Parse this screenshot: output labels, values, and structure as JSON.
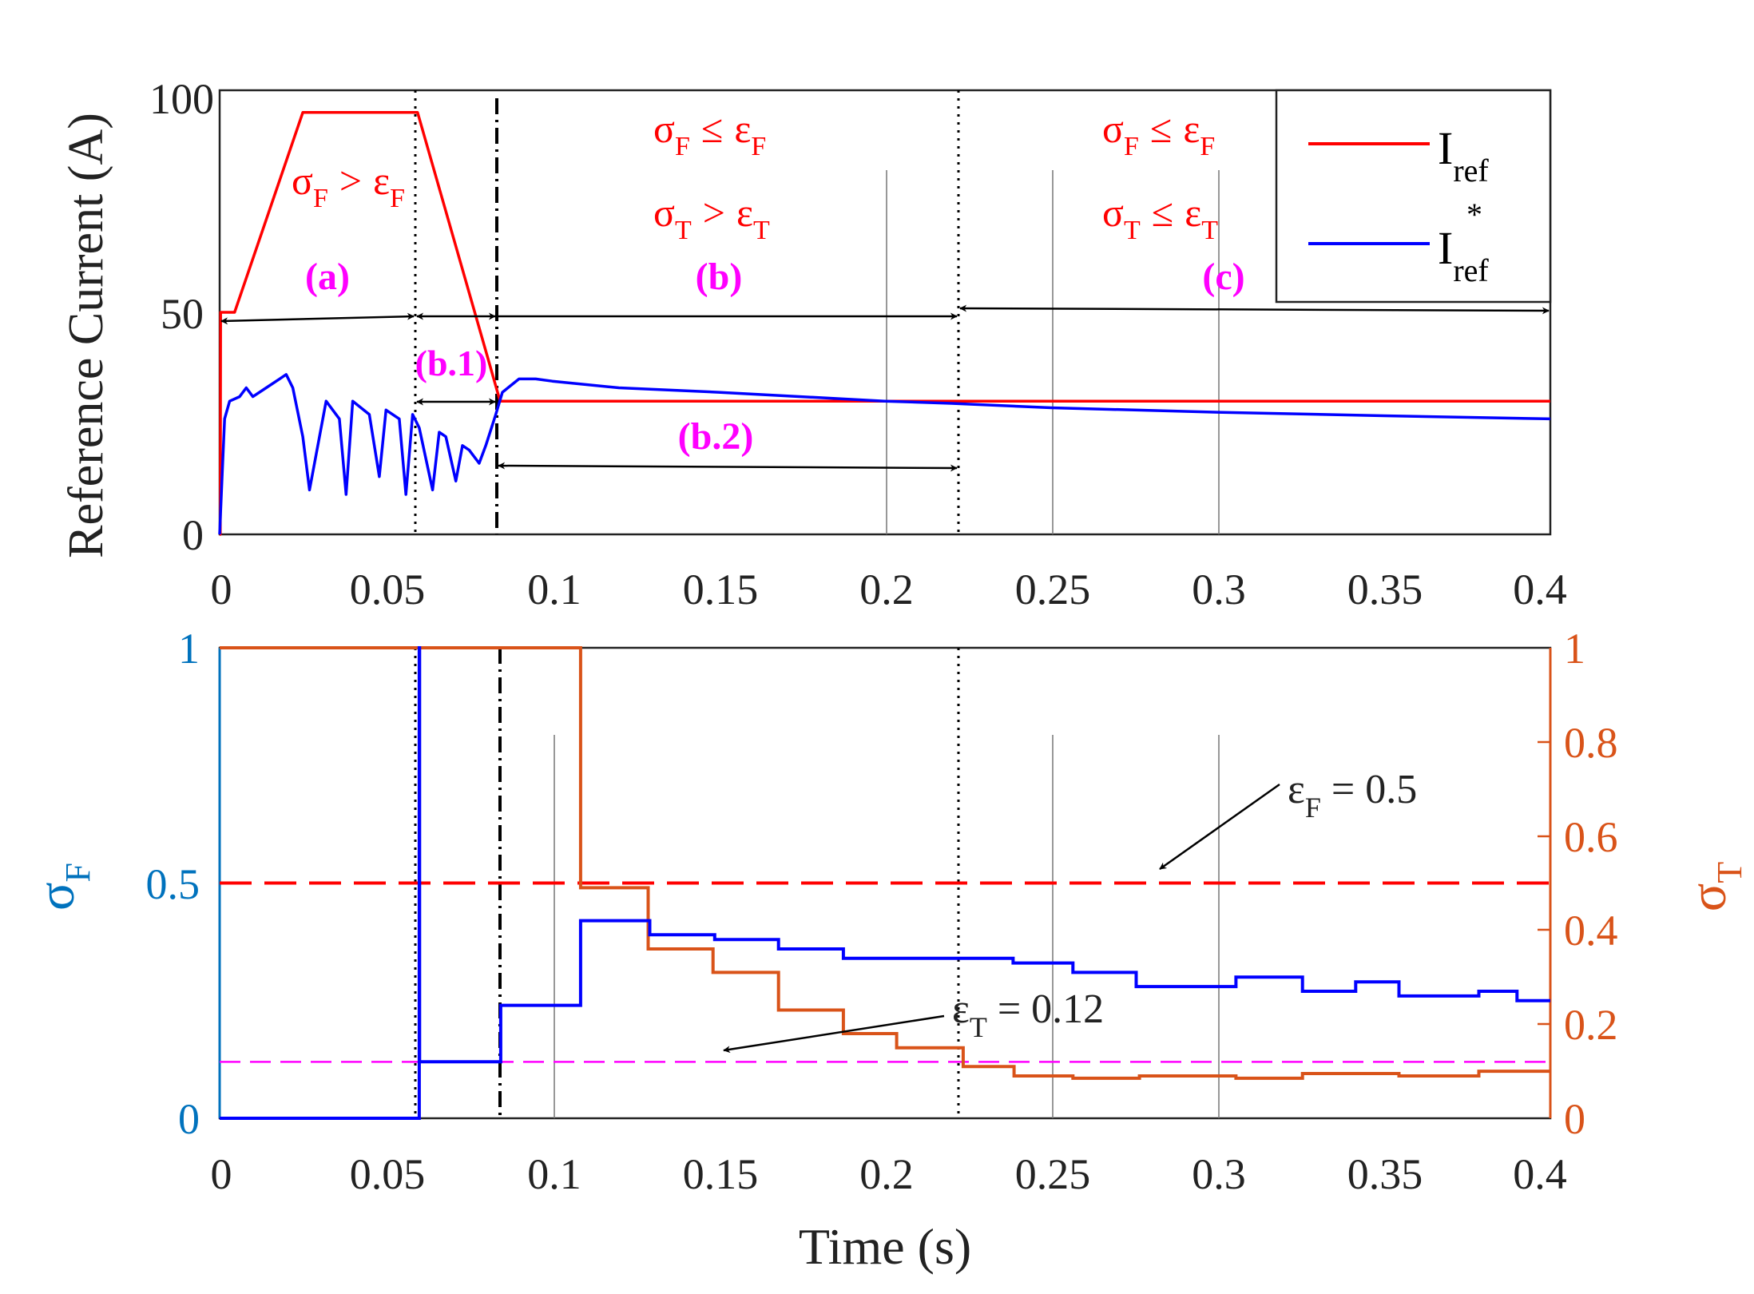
{
  "chart_data": [
    {
      "type": "line",
      "ylabel": "Reference Current (A)",
      "xlim": [
        0,
        0.4
      ],
      "ylim": [
        0,
        100
      ],
      "xticks": [
        "0",
        "0.05",
        "0.1",
        "0.15",
        "0.2",
        "0.25",
        "0.3",
        "0.35",
        "0.4"
      ],
      "yticks": [
        "0",
        "50",
        "100"
      ],
      "legend": [
        {
          "main": "I",
          "sub": "ref",
          "sup": "",
          "color": "#ff0000"
        },
        {
          "main": "I",
          "sub": "ref",
          "sup": "*",
          "color": "#0000ff"
        }
      ],
      "series": [
        {
          "name": "Iref",
          "color": "#ff0000",
          "x": [
            0,
            0.0002,
            0.0003,
            0.0045,
            0.025,
            0.0595,
            0.0805,
            0.0843,
            0.4
          ],
          "y": [
            0,
            0,
            50,
            50,
            95,
            95,
            40,
            30,
            30
          ]
        },
        {
          "name": "Iref*",
          "color": "#0000ff",
          "x": [
            0,
            0.0008,
            0.0015,
            0.003,
            0.006,
            0.008,
            0.01,
            0.014,
            0.018,
            0.02,
            0.022,
            0.025,
            0.027,
            0.032,
            0.036,
            0.038,
            0.04,
            0.045,
            0.048,
            0.05,
            0.054,
            0.056,
            0.058,
            0.06,
            0.064,
            0.066,
            0.068,
            0.071,
            0.073,
            0.075,
            0.078,
            0.08,
            0.083,
            0.085,
            0.09,
            0.095,
            0.1,
            0.12,
            0.15,
            0.2,
            0.22,
            0.25,
            0.3,
            0.35,
            0.4
          ],
          "y": [
            0,
            14,
            26,
            30,
            31,
            33,
            31,
            33,
            35,
            36,
            33,
            22,
            10,
            30,
            26,
            9,
            30,
            27,
            13,
            28,
            26,
            9,
            27,
            24,
            10,
            23,
            22,
            12,
            20,
            19,
            16,
            20,
            27,
            32,
            35,
            35,
            34.5,
            33,
            32,
            30,
            29.5,
            28.5,
            27.5,
            26.7,
            26
          ]
        }
      ],
      "annotations": {
        "phase_a": {
          "sigma": "σ",
          "sub1": "F",
          "op": ">",
          "eps": "ε",
          "sub2": "F"
        },
        "phase_b_line1": {
          "sigma": "σ",
          "sub1": "F",
          "op": "≤",
          "eps": "ε",
          "sub2": "F"
        },
        "phase_b_line2": {
          "sigma": "σ",
          "sub1": "T",
          "op": ">",
          "eps": "ε",
          "sub2": "T"
        },
        "phase_c_line1": {
          "sigma": "σ",
          "sub1": "F",
          "op": "≤",
          "eps": "ε",
          "sub2": "F"
        },
        "phase_c_line2": {
          "sigma": "σ",
          "sub1": "T",
          "op": "≤",
          "eps": "ε",
          "sub2": "T"
        },
        "labels": {
          "a": "(a)",
          "b": "(b)",
          "c": "(c)",
          "b1": "(b.1)",
          "b2": "(b.2)"
        }
      }
    },
    {
      "type": "line",
      "xlabel": "Time (s)",
      "ylabel_left": {
        "main": "σ",
        "sub": "F"
      },
      "ylabel_right": {
        "main": "σ",
        "sub": "T"
      },
      "xlim": [
        0,
        0.4
      ],
      "ylim_left": [
        0,
        1
      ],
      "ylim_right": [
        0,
        1
      ],
      "xticks": [
        "0",
        "0.05",
        "0.1",
        "0.15",
        "0.2",
        "0.25",
        "0.3",
        "0.35",
        "0.4"
      ],
      "yticks_left": [
        "0",
        "0.5",
        "1"
      ],
      "yticks_right": [
        "0",
        "0.2",
        "0.4",
        "0.6",
        "0.8",
        "1"
      ],
      "thresholds": [
        {
          "name": "epsilon_F",
          "value": 0.5,
          "color": "#ff0000",
          "label": {
            "main": "ε",
            "sub": "F",
            "rest": " = 0.5"
          }
        },
        {
          "name": "epsilon_T",
          "value": 0.12,
          "color": "#ff00ff",
          "label": {
            "main": "ε",
            "sub": "T",
            "rest": " = 0.12"
          }
        }
      ],
      "series": [
        {
          "name": "sigma_F",
          "color": "#0000ff",
          "steps": [
            [
              0,
              0
            ],
            [
              0.06,
              1
            ],
            [
              0.0601,
              0.12
            ],
            [
              0.0845,
              0.24
            ],
            [
              0.1085,
              0.42
            ],
            [
              0.1293,
              0.39
            ],
            [
              0.1488,
              0.38
            ],
            [
              0.168,
              0.36
            ],
            [
              0.1875,
              0.34
            ],
            [
              0.207,
              0.34
            ],
            [
              0.2235,
              0.34
            ],
            [
              0.2385,
              0.33
            ],
            [
              0.2565,
              0.31
            ],
            [
              0.2755,
              0.28
            ],
            [
              0.3055,
              0.3
            ],
            [
              0.3255,
              0.27
            ],
            [
              0.3415,
              0.29
            ],
            [
              0.3545,
              0.26
            ],
            [
              0.3785,
              0.27
            ],
            [
              0.39,
              0.25
            ]
          ],
          "x_end": 0.4
        },
        {
          "name": "sigma_T",
          "color": "#d95319",
          "steps": [
            [
              0,
              1
            ],
            [
              0.1085,
              0.49
            ],
            [
              0.1288,
              0.36
            ],
            [
              0.1483,
              0.31
            ],
            [
              0.168,
              0.23
            ],
            [
              0.1875,
              0.18
            ],
            [
              0.2035,
              0.15
            ],
            [
              0.2235,
              0.11
            ],
            [
              0.2388,
              0.09
            ],
            [
              0.2565,
              0.085
            ],
            [
              0.2765,
              0.09
            ],
            [
              0.3055,
              0.085
            ],
            [
              0.3255,
              0.095
            ],
            [
              0.3545,
              0.09
            ],
            [
              0.3785,
              0.1
            ]
          ],
          "x_end": 0.4
        }
      ]
    }
  ]
}
